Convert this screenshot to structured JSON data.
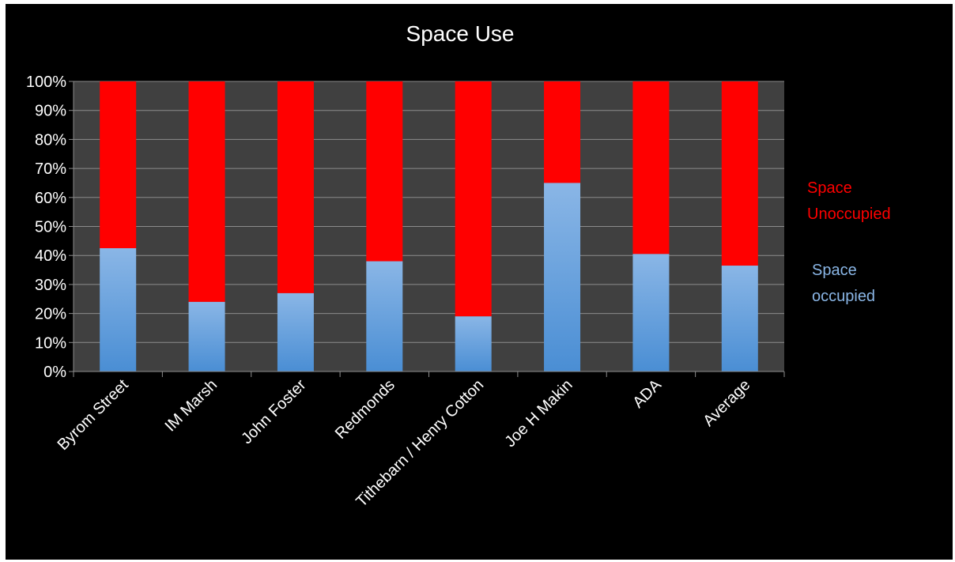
{
  "chart_data": {
    "type": "bar",
    "stacked": true,
    "percent_stacked": true,
    "title": "Space Use",
    "xlabel": "",
    "ylabel": "",
    "ylim": [
      0,
      100
    ],
    "yticks": [
      "0%",
      "10%",
      "20%",
      "30%",
      "40%",
      "50%",
      "60%",
      "70%",
      "80%",
      "90%",
      "100%"
    ],
    "grid": true,
    "legend_position": "right",
    "categories": [
      "Byrom Street",
      "IM Marsh",
      "John Foster",
      "Redmonds",
      "Tithebarn / Henry Cotton",
      "Joe H Makin",
      "ADA",
      "Average"
    ],
    "series": [
      {
        "name": "Space occupied",
        "color": "#6aa3e0",
        "values": [
          42.5,
          24,
          27,
          38,
          19,
          65,
          40.5,
          36.5
        ]
      },
      {
        "name": "Space Unoccupied",
        "color": "#ff0000",
        "values": [
          57.5,
          76,
          73,
          62,
          81,
          35,
          59.5,
          63.5
        ]
      }
    ],
    "legend": {
      "unoccupied_line1": "Space",
      "unoccupied_line2": "Unoccupied",
      "occupied_line1": "Space",
      "occupied_line2": "occupied"
    },
    "colors": {
      "background": "#000000",
      "plot_area": "#404040",
      "gridline": "#8c8c8c",
      "text": "#ffffff",
      "occupied_top": "#8ab6e6",
      "occupied_bottom": "#4a8ed4",
      "unoccupied": "#ff0000"
    }
  }
}
